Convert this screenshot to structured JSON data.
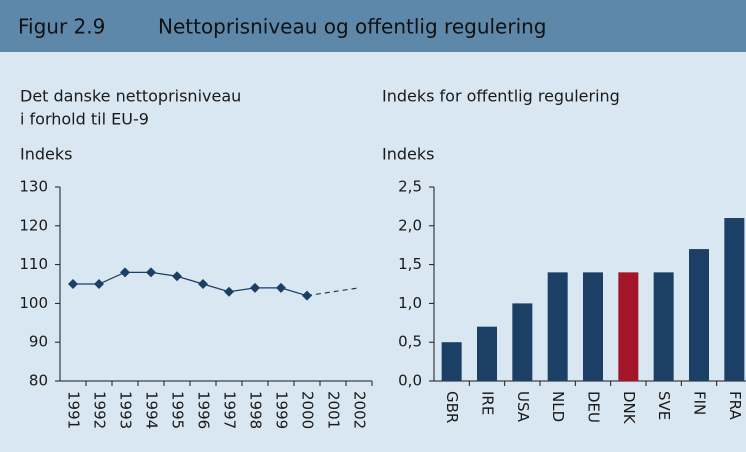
{
  "header": {
    "figure": "Figur 2.9",
    "title": "Nettoprisniveau og offentlig regulering"
  },
  "chart_data": [
    {
      "type": "line",
      "title": [
        "Det danske nettoprisniveau",
        "i forhold til EU-9"
      ],
      "y_label": "Indeks",
      "categories": [
        "1991",
        "1992",
        "1993",
        "1994",
        "1995",
        "1996",
        "1997",
        "1998",
        "1999",
        "2000",
        "2001",
        "2002"
      ],
      "series": [
        {
          "color": "#1c3f66",
          "dashed": false,
          "values": [
            105,
            105,
            108,
            108,
            107,
            105,
            103,
            104,
            104,
            102,
            null,
            null
          ]
        },
        {
          "color": "#1c3f66",
          "dashed": true,
          "values": [
            null,
            null,
            null,
            null,
            null,
            null,
            null,
            null,
            null,
            102,
            103,
            104
          ]
        }
      ],
      "ylim": [
        80,
        130
      ],
      "yticks": [
        80,
        90,
        100,
        110,
        120,
        130
      ]
    },
    {
      "type": "bar",
      "title": [
        "Indeks for offentlig regulering"
      ],
      "y_label": "Indeks",
      "categories": [
        "GBR",
        "IRE",
        "USA",
        "NLD",
        "DEU",
        "DNK",
        "SVE",
        "FIN",
        "FRA"
      ],
      "values": [
        0.5,
        0.7,
        1.0,
        1.4,
        1.4,
        1.4,
        1.4,
        1.7,
        2.1
      ],
      "colors": [
        "#1c3f66",
        "#1c3f66",
        "#1c3f66",
        "#1c3f66",
        "#1c3f66",
        "#a3162a",
        "#1c3f66",
        "#1c3f66",
        "#1c3f66"
      ],
      "ylim": [
        0,
        2.5
      ],
      "yticks": [
        {
          "value": 0,
          "label": "0,0"
        },
        {
          "value": 0.5,
          "label": "0,5"
        },
        {
          "value": 1,
          "label": "1,0"
        },
        {
          "value": 1.5,
          "label": "1,5"
        },
        {
          "value": 2,
          "label": "2,0"
        },
        {
          "value": 2.5,
          "label": "2,5"
        }
      ]
    }
  ]
}
